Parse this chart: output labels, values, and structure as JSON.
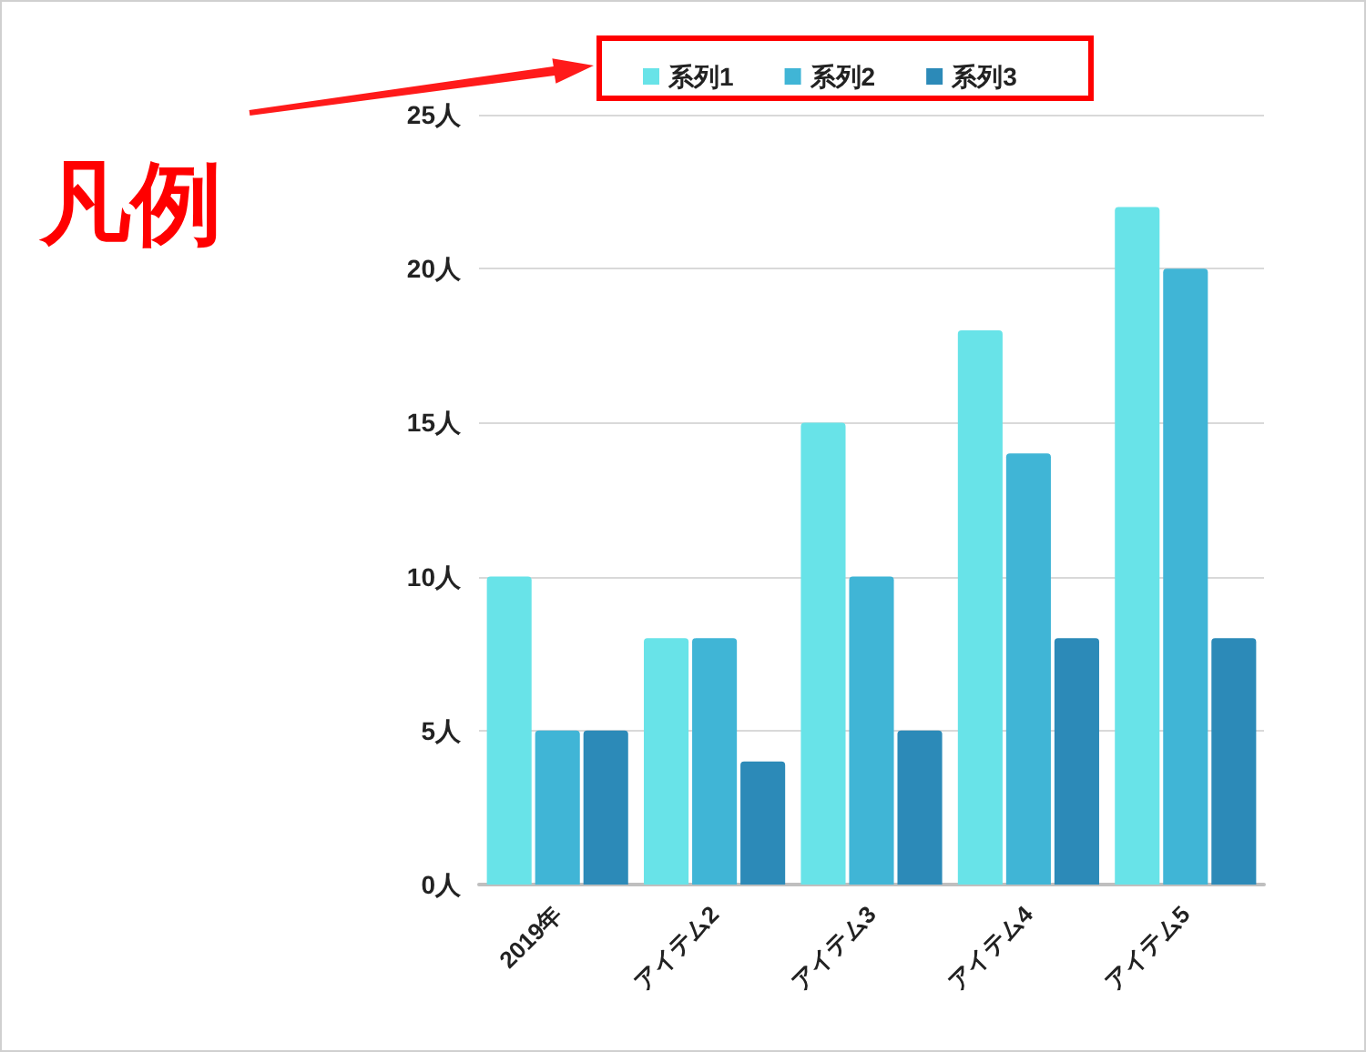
{
  "chart_data": {
    "type": "bar",
    "categories": [
      "2019年",
      "アイテム2",
      "アイテム3",
      "アイテム4",
      "アイテム5"
    ],
    "series": [
      {
        "name": "系列1",
        "color": "#68e3e8",
        "values": [
          10,
          8,
          15,
          18,
          22
        ]
      },
      {
        "name": "系列2",
        "color": "#40b5d6",
        "values": [
          5,
          8,
          10,
          14,
          20
        ]
      },
      {
        "name": "系列3",
        "color": "#2c8ab8",
        "values": [
          5,
          4,
          5,
          8,
          8
        ]
      }
    ],
    "ylim": [
      0,
      25
    ],
    "yticks": [
      {
        "value": 0,
        "label": "0人"
      },
      {
        "value": 5,
        "label": "5人"
      },
      {
        "value": 10,
        "label": "10人"
      },
      {
        "value": 15,
        "label": "15人"
      },
      {
        "value": 20,
        "label": "20人"
      },
      {
        "value": 25,
        "label": "25人"
      }
    ],
    "grid": "y",
    "legend": "top",
    "annotations": [
      "凡例"
    ]
  }
}
